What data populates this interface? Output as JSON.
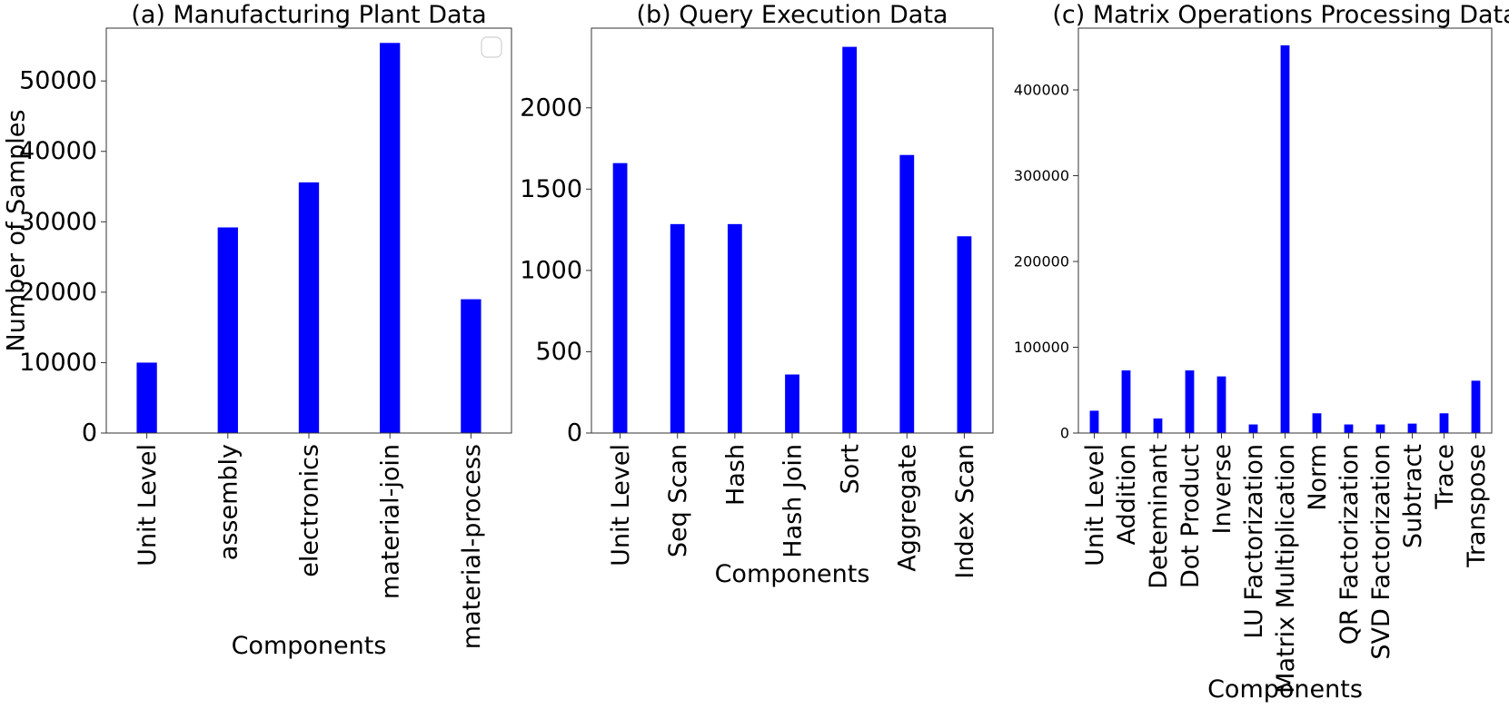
{
  "chart_data": [
    {
      "type": "bar",
      "title": "(a) Manufacturing Plant Data",
      "xlabel": "Components",
      "ylabel": "Number of Samples",
      "categories": [
        "Unit Level",
        "assembly",
        "electronics",
        "material-join",
        "material-process"
      ],
      "values": [
        10000,
        29200,
        35600,
        55400,
        19000
      ],
      "ylim": [
        0,
        57500
      ],
      "yticks": [
        0,
        10000,
        20000,
        30000,
        40000,
        50000
      ],
      "legend": "top-right (empty)",
      "color": "#0000ff",
      "grid": false
    },
    {
      "type": "bar",
      "title": "(b) Query Execution Data",
      "xlabel": "Components",
      "ylabel": "",
      "categories": [
        "Unit Level",
        "Seq Scan",
        "Hash",
        "Hash Join",
        "Sort",
        "Aggregate",
        "Index Scan"
      ],
      "values": [
        1660,
        1285,
        1285,
        360,
        2375,
        1710,
        1210
      ],
      "ylim": [
        0,
        2490
      ],
      "yticks": [
        0,
        500,
        1000,
        1500,
        2000
      ],
      "color": "#0000ff",
      "grid": false
    },
    {
      "type": "bar",
      "title": "(c) Matrix Operations Processing Data",
      "xlabel": "Components",
      "ylabel": "",
      "categories": [
        "Unit Level",
        "Addition",
        "Deteminant",
        "Dot Product",
        "Inverse",
        "LU Factorization",
        "Matrix Multiplication",
        "Norm",
        "QR Factorization",
        "SVD Factorization",
        "Subtract",
        "Trace",
        "Transpose"
      ],
      "values": [
        26000,
        73000,
        17000,
        73000,
        66000,
        10000,
        452000,
        23000,
        10000,
        10000,
        11000,
        23000,
        61000
      ],
      "ylim": [
        0,
        472000
      ],
      "yticks": [
        0,
        100000,
        200000,
        300000,
        400000
      ],
      "color": "#0000ff",
      "grid": false
    }
  ]
}
